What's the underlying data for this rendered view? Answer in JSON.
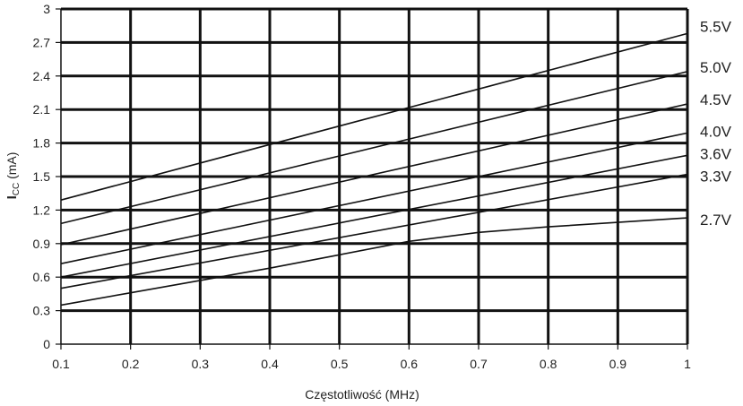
{
  "chart_data": {
    "type": "line",
    "title": "",
    "xlabel": "Częstotliwość (MHz)",
    "ylabel": {
      "main": "I",
      "sub": "CC",
      "unit": " (mA)"
    },
    "xlim": [
      0.1,
      1
    ],
    "ylim": [
      0,
      3
    ],
    "x_ticks": [
      "0.1",
      "0.2",
      "0.3",
      "0.4",
      "0.5",
      "0.6",
      "0.7",
      "0.8",
      "0.9",
      "1"
    ],
    "y_ticks": [
      "0",
      "0.3",
      "0.6",
      "0.9",
      "1.2",
      "1.5",
      "1.8",
      "2.1",
      "2.4",
      "2.7",
      "3"
    ],
    "grid": true,
    "series": [
      {
        "name": "5.5V",
        "x": [
          0.1,
          1
        ],
        "y": [
          1.29,
          2.78
        ]
      },
      {
        "name": "5.0V",
        "x": [
          0.1,
          1
        ],
        "y": [
          1.08,
          2.44
        ]
      },
      {
        "name": "4.5V",
        "x": [
          0.1,
          1
        ],
        "y": [
          0.89,
          2.15
        ]
      },
      {
        "name": "4.0V",
        "x": [
          0.1,
          1
        ],
        "y": [
          0.72,
          1.89
        ]
      },
      {
        "name": "3.6V",
        "x": [
          0.1,
          1
        ],
        "y": [
          0.6,
          1.69
        ]
      },
      {
        "name": "3.3V",
        "x": [
          0.1,
          1
        ],
        "y": [
          0.5,
          1.52
        ]
      },
      {
        "name": "2.7V",
        "x": [
          0.1,
          0.2,
          0.3,
          0.4,
          0.5,
          0.6,
          0.7,
          0.8,
          0.9,
          1
        ],
        "y": [
          0.35,
          0.46,
          0.57,
          0.68,
          0.8,
          0.92,
          1.0,
          1.05,
          1.09,
          1.13
        ]
      }
    ]
  }
}
